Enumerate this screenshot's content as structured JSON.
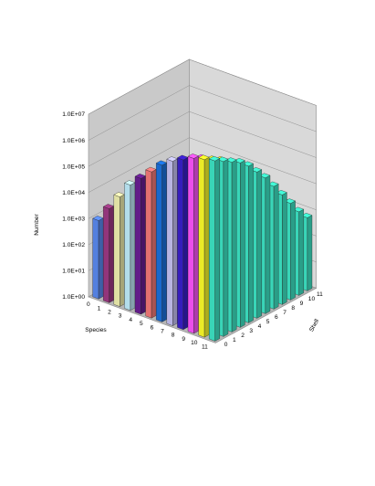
{
  "chart_data": {
    "type": "bar3d",
    "zlabel": "Number",
    "xlabel": "Species",
    "ylabel": "Shell",
    "zscale": "log",
    "zlim": [
      1,
      10000000
    ],
    "z_ticks": [
      "1.0E+00",
      "1.0E+01",
      "1.0E+02",
      "1.0E+03",
      "1.0E+04",
      "1.0E+05",
      "1.0E+06",
      "1.0E+07"
    ],
    "species": [
      "0",
      "1",
      "2",
      "3",
      "4",
      "5",
      "6",
      "7",
      "8",
      "9",
      "10",
      "11"
    ],
    "shells": [
      "0",
      "1",
      "2",
      "3",
      "4",
      "5",
      "6",
      "7",
      "8",
      "9",
      "10",
      "11"
    ],
    "values_log10": [
      [
        3.0,
        2.6,
        2.0,
        1.6,
        1.0,
        0.6,
        0.1,
        0.05,
        0.0,
        0.0,
        0.0,
        0.0
      ],
      [
        3.6,
        3.1,
        2.6,
        2.0,
        1.5,
        1.0,
        0.6,
        0.1,
        0.05,
        0.0,
        0.0,
        0.0
      ],
      [
        4.2,
        3.7,
        3.1,
        2.5,
        2.0,
        1.5,
        1.0,
        0.5,
        0.1,
        0.05,
        0.0,
        0.0
      ],
      [
        4.8,
        4.3,
        3.7,
        3.1,
        2.5,
        2.0,
        1.5,
        1.0,
        0.5,
        0.1,
        0.05,
        0.0
      ],
      [
        5.2,
        4.9,
        4.3,
        3.7,
        3.1,
        2.5,
        2.0,
        1.5,
        1.0,
        0.5,
        0.1,
        0.05
      ],
      [
        5.6,
        5.3,
        4.8,
        4.2,
        3.6,
        3.0,
        2.5,
        2.0,
        1.5,
        1.0,
        0.5,
        0.1
      ],
      [
        6.0,
        5.7,
        5.2,
        4.7,
        4.1,
        3.5,
        3.0,
        2.5,
        2.0,
        1.5,
        1.0,
        0.5
      ],
      [
        6.3,
        6.0,
        5.6,
        5.1,
        4.6,
        4.0,
        3.5,
        3.0,
        2.5,
        2.0,
        1.5,
        1.0
      ],
      [
        6.5,
        6.3,
        5.9,
        5.5,
        5.0,
        4.5,
        4.0,
        3.5,
        3.0,
        2.5,
        2.0,
        1.5
      ],
      [
        6.7,
        6.5,
        6.2,
        5.8,
        5.4,
        4.9,
        4.4,
        3.9,
        3.4,
        2.9,
        2.4,
        2.0
      ],
      [
        6.8,
        6.6,
        6.4,
        6.1,
        5.7,
        5.3,
        4.8,
        4.3,
        3.8,
        3.3,
        2.8,
        2.4
      ],
      [
        6.9,
        6.7,
        6.5,
        6.3,
        6.0,
        5.6,
        5.2,
        4.7,
        4.2,
        3.7,
        3.2,
        2.8
      ]
    ],
    "colors": {
      "species": [
        "#5b8bf2",
        "#a03a86",
        "#f4f3b2",
        "#c3f0ff",
        "#6a1e95",
        "#f77b7a",
        "#1b72df",
        "#c7c4f6",
        "#3a1fcc",
        "#ff55ff",
        "#ffff2a",
        "#3ee8c8"
      ],
      "wall": "#c9c9c9",
      "floor": "#b6b6b6",
      "grid": "#909090"
    },
    "grid": true
  }
}
